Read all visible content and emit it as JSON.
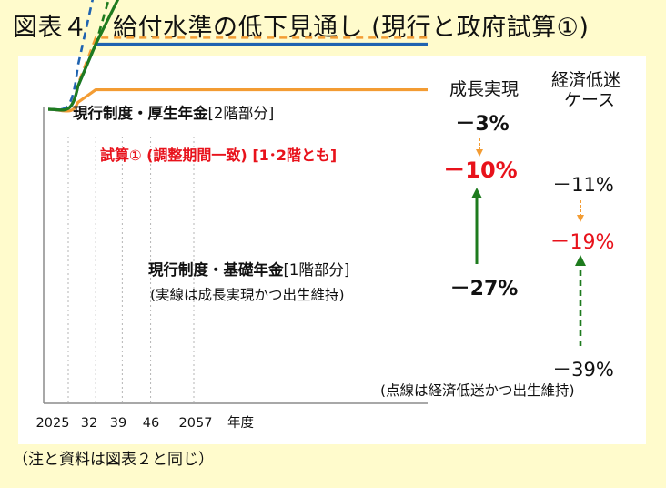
{
  "title": "図表４　給付水準の低下見通し (現行と政府試算①)",
  "note": "（注と資料は図表２と同じ）",
  "colors": {
    "orange": "#f39c33",
    "blue": "#1f63b0",
    "green": "#1e7b1e",
    "red": "#e8121b",
    "axis": "#8c8c8c",
    "background": "#fffbcc",
    "panel": "#ffffff"
  },
  "chart_data": {
    "type": "line",
    "x_unit_label": "年度",
    "x_ticks": [
      "2025",
      "32",
      "39",
      "46",
      "2057"
    ],
    "y_axis_labels": "none",
    "grid": false,
    "column_headers": {
      "growth": "成長実現",
      "stagnation_line1": "経済低迷",
      "stagnation_line2": "ケース"
    },
    "series": [
      {
        "name": "現行制度・厚生年金",
        "name_suffix": "[2階部分]",
        "color": "orange",
        "x": [
          2025,
          2032,
          2057
        ],
        "growth": [
          0,
          -3,
          -3
        ],
        "stagnation": [
          0,
          -11,
          -11
        ]
      },
      {
        "name": "試算① (調整期間一致) [1･2階とも]",
        "color": "blue",
        "x": [
          2025,
          2032,
          2039,
          2057
        ],
        "growth": [
          0,
          -10,
          -10,
          -10
        ],
        "stagnation": [
          0,
          -19,
          -19,
          -19
        ]
      },
      {
        "name": "現行制度・基礎年金",
        "name_suffix": "[1階部分]",
        "color": "green",
        "x": [
          2025,
          2032,
          2046,
          2057
        ],
        "growth": [
          0,
          -10,
          -27,
          -27
        ],
        "stagnation": [
          0,
          -10,
          -39,
          -39
        ]
      }
    ],
    "annotations": {
      "growth_values": [
        "－3%",
        "－10%",
        "－27%"
      ],
      "stagnation_values": [
        "－11%",
        "－19%",
        "－39%"
      ],
      "solid_line_note": "(実線は成長実現かつ出生維持)",
      "dashed_line_note": "(点線は経済低迷かつ出生維持)"
    }
  }
}
